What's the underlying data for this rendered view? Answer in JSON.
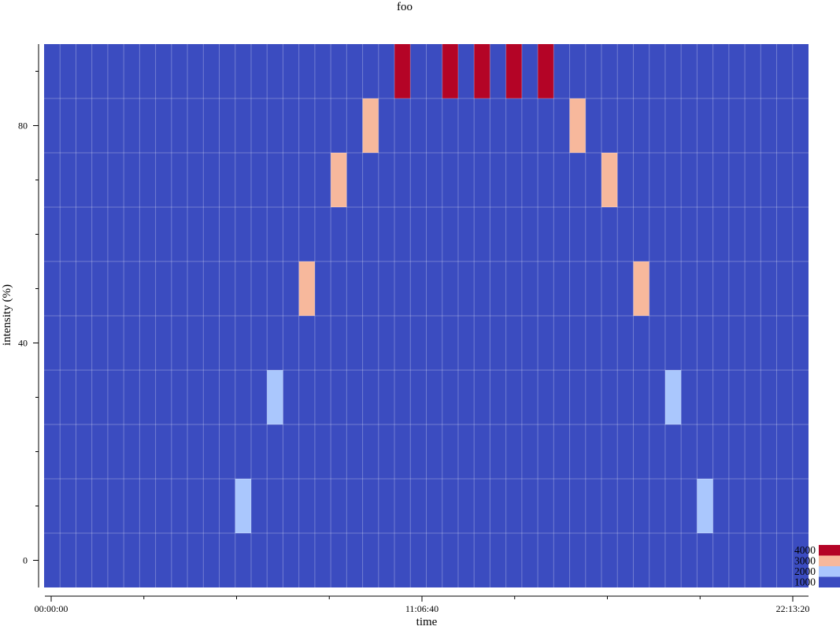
{
  "chart_data": {
    "type": "heatmap",
    "title": "foo",
    "xlabel": "time",
    "ylabel": "intensity (%)",
    "x_ticks": [
      "00:00:00",
      "11:06:40",
      "22:13:20"
    ],
    "y_ticks": [
      "0",
      "40",
      "80"
    ],
    "xlim_seconds": [
      0,
      80000
    ],
    "ylim": [
      -5,
      95
    ],
    "grid": true,
    "columns": 48,
    "row_bands": [
      0,
      10,
      20,
      30,
      40,
      50,
      60,
      70,
      80,
      90
    ],
    "default_value": 1000,
    "cells": [
      {
        "col": 12,
        "row": 1,
        "value": 2000
      },
      {
        "col": 14,
        "row": 3,
        "value": 2000
      },
      {
        "col": 16,
        "row": 5,
        "value": 3000
      },
      {
        "col": 18,
        "row": 7,
        "value": 3000
      },
      {
        "col": 20,
        "row": 8,
        "value": 3000
      },
      {
        "col": 22,
        "row": 9,
        "value": 4000
      },
      {
        "col": 25,
        "row": 9,
        "value": 4000
      },
      {
        "col": 27,
        "row": 9,
        "value": 4000
      },
      {
        "col": 29,
        "row": 9,
        "value": 4000
      },
      {
        "col": 31,
        "row": 9,
        "value": 4000
      },
      {
        "col": 33,
        "row": 8,
        "value": 3000
      },
      {
        "col": 35,
        "row": 7,
        "value": 3000
      },
      {
        "col": 37,
        "row": 5,
        "value": 3000
      },
      {
        "col": 39,
        "row": 3,
        "value": 2000
      },
      {
        "col": 41,
        "row": 1,
        "value": 2000
      }
    ],
    "legend": {
      "placement": "bottom-right",
      "entries": [
        {
          "label": "4000",
          "color": "#b40426"
        },
        {
          "label": "3000",
          "color": "#f7b89c"
        },
        {
          "label": "2000",
          "color": "#aac7fd"
        },
        {
          "label": "1000",
          "color": "#3b4cc0"
        }
      ]
    },
    "colors": {
      "1000": "#3b4cc0",
      "2000": "#aac7fd",
      "3000": "#f7b89c",
      "4000": "#b40426"
    }
  }
}
